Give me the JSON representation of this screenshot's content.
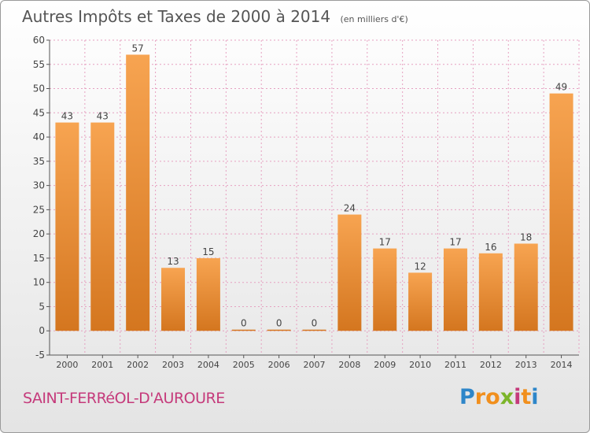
{
  "header": {
    "title": "Autres Impôts et Taxes de 2000 à 2014",
    "unit": "(en milliers d'€)"
  },
  "footer": {
    "commune": "SAINT-FERRéOL-D'AUROURE",
    "brand_letters": [
      "P",
      "r",
      "o",
      "x",
      "i",
      "t",
      "i"
    ],
    "brand_colors": [
      "#2e86c9",
      "#f18f1d",
      "#f18f1d",
      "#7cb52a",
      "#c53a7b",
      "#f18f1d",
      "#2e86c9"
    ]
  },
  "chart_data": {
    "type": "bar",
    "title": "Autres Impôts et Taxes de 2000 à 2014",
    "categories": [
      "2000",
      "2001",
      "2002",
      "2003",
      "2004",
      "2005",
      "2006",
      "2007",
      "2008",
      "2009",
      "2010",
      "2011",
      "2012",
      "2013",
      "2014"
    ],
    "values": [
      43,
      43,
      57,
      13,
      15,
      0,
      0,
      0,
      24,
      17,
      12,
      17,
      16,
      18,
      49
    ],
    "ylim": [
      -5,
      60
    ],
    "yticks": [
      -5,
      0,
      5,
      10,
      15,
      20,
      25,
      30,
      35,
      40,
      45,
      50,
      55,
      60
    ],
    "grid": true,
    "colors": {
      "bar_light": "#f7a451",
      "bar_dark": "#d4761f",
      "grid": "#e6a0c0",
      "axis": "#555555"
    }
  }
}
